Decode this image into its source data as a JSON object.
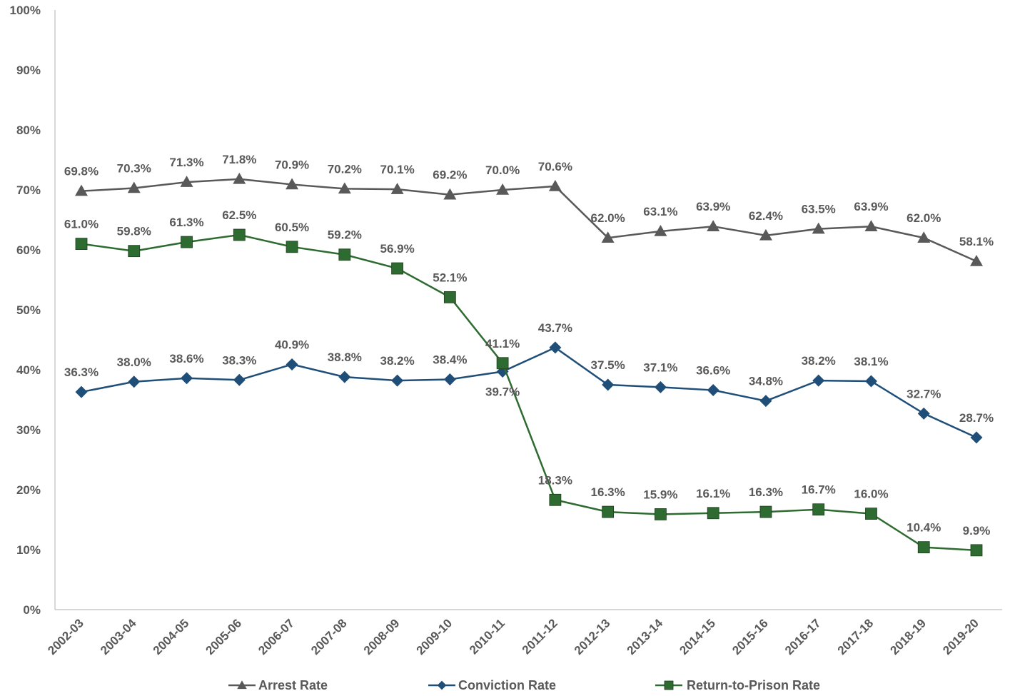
{
  "chart_data": {
    "type": "line",
    "title": "",
    "xlabel": "",
    "ylabel": "",
    "ylim": [
      0,
      100
    ],
    "y_ticks": [
      "0%",
      "10%",
      "20%",
      "30%",
      "40%",
      "50%",
      "60%",
      "70%",
      "80%",
      "90%",
      "100%"
    ],
    "grid": false,
    "legend_position": "bottom",
    "categories": [
      "2002-03",
      "2003-04",
      "2004-05",
      "2005-06",
      "2006-07",
      "2007-08",
      "2008-09",
      "2009-10",
      "2010-11",
      "2011-12",
      "2012-13",
      "2013-14",
      "2014-15",
      "2015-16",
      "2016-17",
      "2017-18",
      "2018-19",
      "2019-20"
    ],
    "series": [
      {
        "name": "Arrest Rate",
        "color": "#595959",
        "marker": "triangle",
        "values": [
          69.8,
          70.3,
          71.3,
          71.8,
          70.9,
          70.2,
          70.1,
          69.2,
          70.0,
          70.6,
          62.0,
          63.1,
          63.9,
          62.4,
          63.5,
          63.9,
          62.0,
          58.1
        ],
        "labels": [
          "69.8%",
          "70.3%",
          "71.3%",
          "71.8%",
          "70.9%",
          "70.2%",
          "70.1%",
          "69.2%",
          "70.0%",
          "70.6%",
          "62.0%",
          "63.1%",
          "63.9%",
          "62.4%",
          "63.5%",
          "63.9%",
          "62.0%",
          "58.1%"
        ]
      },
      {
        "name": "Conviction Rate",
        "color": "#1F4E79",
        "marker": "diamond",
        "values": [
          36.3,
          38.0,
          38.6,
          38.3,
          40.9,
          38.8,
          38.2,
          38.4,
          39.7,
          43.7,
          37.5,
          37.1,
          36.6,
          34.8,
          38.2,
          38.1,
          32.7,
          28.7
        ],
        "labels": [
          "36.3%",
          "38.0%",
          "38.6%",
          "38.3%",
          "40.9%",
          "38.8%",
          "38.2%",
          "38.4%",
          "39.7%",
          "43.7%",
          "37.5%",
          "37.1%",
          "36.6%",
          "34.8%",
          "38.2%",
          "38.1%",
          "32.7%",
          "28.7%"
        ]
      },
      {
        "name": "Return-to-Prison Rate",
        "color": "#2E6B30",
        "marker": "square",
        "values": [
          61.0,
          59.8,
          61.3,
          62.5,
          60.5,
          59.2,
          56.9,
          52.1,
          41.1,
          18.3,
          16.3,
          15.9,
          16.1,
          16.3,
          16.7,
          16.0,
          10.4,
          9.9
        ],
        "labels": [
          "61.0%",
          "59.8%",
          "61.3%",
          "62.5%",
          "60.5%",
          "59.2%",
          "56.9%",
          "52.1%",
          "41.1%",
          "18.3%",
          "16.3%",
          "15.9%",
          "16.1%",
          "16.3%",
          "16.7%",
          "16.0%",
          "10.4%",
          "9.9%"
        ]
      }
    ]
  }
}
